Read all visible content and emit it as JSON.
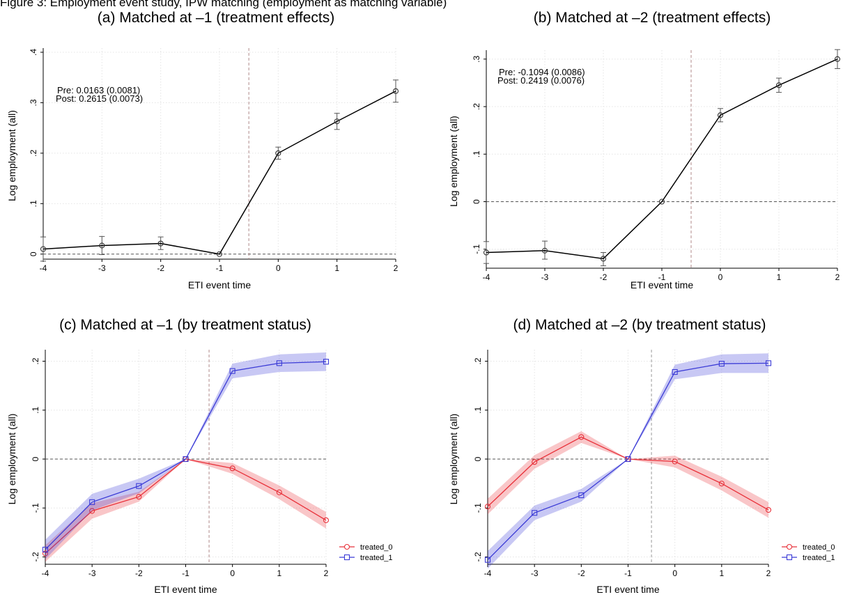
{
  "figure": {
    "title": "Figure 3: Employment event study, IPW matching (employment as matching variable)"
  },
  "chart_data": [
    {
      "type": "line",
      "title": "(a) Matched at –1 (treatment effects)",
      "xlabel": "ETI event time",
      "ylabel": "Log employment (all)",
      "x": [
        -4,
        -3,
        -2,
        -1,
        0,
        1,
        2
      ],
      "xlim": [
        -4,
        2
      ],
      "ylim": [
        -0.01,
        0.4
      ],
      "yticks": [
        0,
        0.1,
        0.2,
        0.3,
        0.4
      ],
      "ytick_labels": [
        "0",
        ".1",
        ".2",
        ".3",
        ".4"
      ],
      "grid": true,
      "reference_lines": {
        "y": 0,
        "x": -0.5
      },
      "series": [
        {
          "values": [
            0.01,
            0.017,
            0.021,
            0.0,
            0.2,
            0.263,
            0.323
          ],
          "ci_low": [
            -0.014,
            -0.001,
            0.009,
            0.0,
            0.188,
            0.247,
            0.301
          ],
          "ci_high": [
            0.034,
            0.035,
            0.034,
            0.0,
            0.212,
            0.279,
            0.345
          ],
          "color": "#000000"
        }
      ],
      "annotations": [
        "Pre: 0.0163 (0.0081)",
        "Post: 0.2615 (0.0073)"
      ]
    },
    {
      "type": "line",
      "title": "(b) Matched at –2 (treatment effects)",
      "xlabel": "ETI event time",
      "ylabel": "Log employment (all)",
      "x": [
        -4,
        -3,
        -2,
        -1,
        0,
        1,
        2
      ],
      "xlim": [
        -4,
        2
      ],
      "ylim": [
        -0.14,
        0.31
      ],
      "yticks": [
        -0.1,
        0,
        0.1,
        0.2,
        0.3
      ],
      "ytick_labels": [
        "-.1",
        "0",
        ".1",
        ".2",
        ".3"
      ],
      "grid": true,
      "reference_lines": {
        "y": 0,
        "x": -0.5
      },
      "series": [
        {
          "values": [
            -0.107,
            -0.103,
            -0.12,
            0.0,
            0.182,
            0.245,
            0.3
          ],
          "ci_low": [
            -0.13,
            -0.121,
            -0.135,
            0.0,
            0.168,
            0.23,
            0.28
          ],
          "ci_high": [
            -0.084,
            -0.083,
            -0.107,
            0.0,
            0.196,
            0.26,
            0.32
          ],
          "color": "#000000"
        }
      ],
      "annotations": [
        "Pre: -0.1094 (0.0086)",
        "Post: 0.2419 (0.0076)"
      ]
    },
    {
      "type": "line",
      "title": "(c) Matched at –1 (by treatment status)",
      "xlabel": "ETI event time",
      "ylabel": "Log employment (all)",
      "x": [
        -4,
        -3,
        -2,
        -1,
        0,
        1,
        2
      ],
      "xlim": [
        -4,
        2
      ],
      "ylim": [
        -0.215,
        0.215
      ],
      "yticks": [
        -0.2,
        -0.1,
        0,
        0.1,
        0.2
      ],
      "ytick_labels": [
        "-.2",
        "-.1",
        "0",
        ".1",
        ".2"
      ],
      "grid": true,
      "legend": "bottom-right",
      "reference_lines": {
        "y": 0,
        "x": -0.5
      },
      "series": [
        {
          "name": "treated_0",
          "values": [
            -0.193,
            -0.106,
            -0.077,
            0.0,
            -0.019,
            -0.068,
            -0.125
          ],
          "ci_low": [
            -0.21,
            -0.122,
            -0.087,
            0.0,
            -0.03,
            -0.082,
            -0.142
          ],
          "ci_high": [
            -0.176,
            -0.09,
            -0.067,
            0.0,
            -0.008,
            -0.054,
            -0.108
          ],
          "color": "#e8313a"
        },
        {
          "name": "treated_1",
          "values": [
            -0.185,
            -0.088,
            -0.055,
            0.0,
            0.18,
            0.196,
            0.199
          ],
          "ci_low": [
            -0.205,
            -0.105,
            -0.07,
            0.0,
            0.165,
            0.178,
            0.18
          ],
          "ci_high": [
            -0.165,
            -0.071,
            -0.04,
            0.0,
            0.195,
            0.214,
            0.218
          ],
          "color": "#3b3bd6"
        }
      ]
    },
    {
      "type": "line",
      "title": "(d) Matched at –2 (by treatment status)",
      "xlabel": "ETI event time",
      "ylabel": "Log employment (all)",
      "x": [
        -4,
        -3,
        -2,
        -1,
        0,
        1,
        2
      ],
      "xlim": [
        -4,
        2
      ],
      "ylim": [
        -0.215,
        0.215
      ],
      "yticks": [
        -0.2,
        -0.1,
        0,
        0.1,
        0.2
      ],
      "ytick_labels": [
        "-.2",
        "-.1",
        "0",
        ".1",
        ".2"
      ],
      "grid": true,
      "legend": "bottom-right",
      "reference_lines": {
        "y": 0,
        "x": -0.5
      },
      "series": [
        {
          "name": "treated_0",
          "values": [
            -0.097,
            -0.006,
            0.045,
            0.0,
            -0.005,
            -0.05,
            -0.104
          ],
          "ci_low": [
            -0.113,
            -0.02,
            0.033,
            0.0,
            -0.017,
            -0.064,
            -0.12
          ],
          "ci_high": [
            -0.081,
            0.008,
            0.057,
            0.0,
            0.007,
            -0.036,
            -0.088
          ],
          "color": "#e8313a"
        },
        {
          "name": "treated_1",
          "values": [
            -0.206,
            -0.11,
            -0.074,
            0.0,
            0.178,
            0.195,
            0.196
          ],
          "ci_low": [
            -0.224,
            -0.125,
            -0.087,
            0.0,
            0.163,
            0.176,
            0.176
          ],
          "ci_high": [
            -0.188,
            -0.095,
            -0.061,
            0.0,
            0.193,
            0.214,
            0.216
          ],
          "color": "#3b3bd6"
        }
      ]
    }
  ]
}
